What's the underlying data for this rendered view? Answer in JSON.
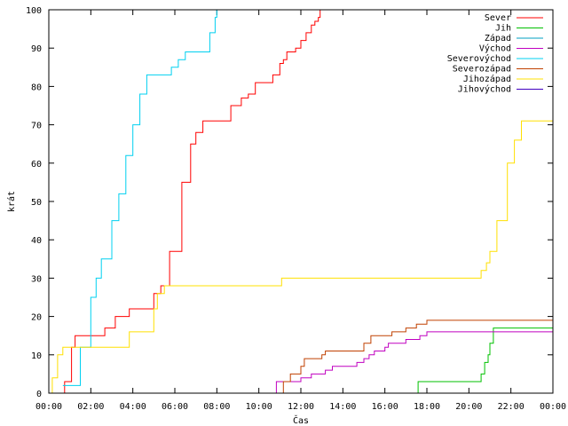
{
  "chart_data": {
    "type": "line",
    "title": "",
    "xlabel": "Čas",
    "ylabel": "krát",
    "xlim": [
      "00:00",
      "24:00"
    ],
    "ylim": [
      0,
      100
    ],
    "x_tick_labels": [
      "00:00",
      "02:00",
      "04:00",
      "06:00",
      "08:00",
      "10:00",
      "12:00",
      "14:00",
      "16:00",
      "18:00",
      "20:00",
      "22:00",
      "00:00"
    ],
    "y_tick_labels": [
      "0",
      "10",
      "20",
      "30",
      "40",
      "50",
      "60",
      "70",
      "80",
      "90",
      "100"
    ],
    "y_ticks": [
      0,
      10,
      20,
      30,
      40,
      50,
      60,
      70,
      80,
      90,
      100
    ],
    "grid": false,
    "legend_position": "top-right",
    "series": [
      {
        "name": "Sever",
        "color": "#ff0000",
        "x": [
          "00:00",
          "00:30",
          "00:45",
          "01:05",
          "01:15",
          "02:20",
          "02:40",
          "03:10",
          "03:50",
          "04:30",
          "05:00",
          "05:20",
          "05:45",
          "06:20",
          "06:45",
          "07:00",
          "07:20",
          "07:40",
          "08:40",
          "09:10",
          "09:30",
          "09:50",
          "10:00",
          "10:15",
          "10:40",
          "11:00",
          "11:10",
          "11:20",
          "11:45",
          "12:00",
          "12:15",
          "12:30",
          "12:40",
          "12:50",
          "12:55"
        ],
        "y": [
          0,
          0,
          3,
          12,
          15,
          15,
          17,
          20,
          22,
          22,
          26,
          28,
          37,
          55,
          65,
          68,
          71,
          71,
          75,
          77,
          78,
          81,
          81,
          81,
          83,
          86,
          87,
          89,
          90,
          92,
          94,
          96,
          97,
          98,
          100
        ]
      },
      {
        "name": "Jih",
        "color": "#00c000",
        "x": [
          "17:30",
          "17:35",
          "20:20",
          "20:35",
          "20:45",
          "20:55",
          "21:00",
          "21:10",
          "24:00"
        ],
        "y": [
          0,
          3,
          3,
          5,
          8,
          10,
          13,
          17,
          17
        ]
      },
      {
        "name": "Západ",
        "color": "#00a0c0",
        "x": [],
        "y": []
      },
      {
        "name": "Východ",
        "color": "#c000c0",
        "x": [
          "10:45",
          "10:50",
          "11:50",
          "12:00",
          "12:30",
          "13:10",
          "13:30",
          "14:00",
          "14:40",
          "15:00",
          "15:15",
          "15:30",
          "16:00",
          "16:10",
          "16:30",
          "17:00",
          "17:20",
          "17:40",
          "18:00",
          "24:00"
        ],
        "y": [
          0,
          3,
          3,
          4,
          5,
          6,
          7,
          7,
          8,
          9,
          10,
          11,
          12,
          13,
          13,
          14,
          14,
          15,
          16,
          16
        ]
      },
      {
        "name": "Severovýchod",
        "color": "#00d0f0",
        "x": [
          "00:40",
          "01:10",
          "01:30",
          "02:00",
          "02:15",
          "02:30",
          "03:00",
          "03:20",
          "03:40",
          "04:00",
          "04:20",
          "04:40",
          "05:00",
          "05:30",
          "05:50",
          "06:10",
          "06:20",
          "06:30",
          "07:20",
          "07:40",
          "07:55",
          "08:00"
        ],
        "y": [
          2,
          2,
          12,
          25,
          30,
          35,
          45,
          52,
          62,
          70,
          78,
          83,
          83,
          83,
          85,
          87,
          87,
          89,
          89,
          94,
          98,
          100
        ]
      },
      {
        "name": "Severozápad",
        "color": "#c04000",
        "x": [
          "11:00",
          "11:10",
          "11:30",
          "12:00",
          "12:10",
          "12:30",
          "13:00",
          "13:10",
          "14:40",
          "15:00",
          "15:20",
          "16:00",
          "16:20",
          "17:00",
          "17:10",
          "17:30",
          "18:00",
          "24:00"
        ],
        "y": [
          0,
          3,
          5,
          7,
          9,
          9,
          10,
          11,
          11,
          13,
          15,
          15,
          16,
          17,
          17,
          18,
          19,
          19
        ]
      },
      {
        "name": "Jihozápad",
        "color": "#ffe000",
        "x": [
          "00:00",
          "00:10",
          "00:25",
          "00:40",
          "03:40",
          "03:50",
          "04:40",
          "05:00",
          "05:10",
          "05:30",
          "11:00",
          "11:05",
          "20:20",
          "20:35",
          "20:50",
          "21:00",
          "21:20",
          "21:50",
          "22:10",
          "22:30",
          "24:00"
        ],
        "y": [
          0,
          4,
          10,
          12,
          12,
          16,
          16,
          22,
          26,
          28,
          28,
          30,
          30,
          32,
          34,
          37,
          45,
          60,
          66,
          71,
          71
        ]
      },
      {
        "name": "Jihovýchod",
        "color": "#4000c0",
        "x": [],
        "y": []
      }
    ]
  }
}
